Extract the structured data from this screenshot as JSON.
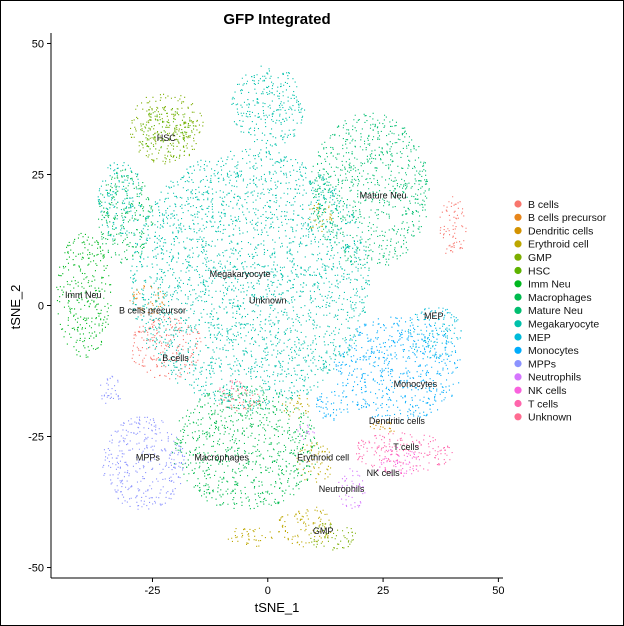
{
  "chart_data": {
    "type": "scatter",
    "title": "GFP Integrated",
    "xlabel": "tSNE_1",
    "ylabel": "tSNE_2",
    "xlim": [
      -47,
      51
    ],
    "ylim": [
      -52,
      52
    ],
    "xticks": [
      -25,
      0,
      25,
      50
    ],
    "yticks": [
      -50,
      -25,
      0,
      25,
      50
    ],
    "legend_position": "right",
    "series": [
      {
        "name": "B cells",
        "color": "#F8766D",
        "regions": [
          {
            "cx": -22,
            "cy": -8,
            "rx": 8,
            "ry": 6
          },
          {
            "cx": 40,
            "cy": 15,
            "rx": 3,
            "ry": 6
          },
          {
            "cx": -6,
            "cy": -18,
            "rx": 5,
            "ry": 2
          }
        ]
      },
      {
        "name": "B cells precursor",
        "color": "#E7861B",
        "regions": [
          {
            "cx": -26,
            "cy": 1,
            "rx": 4,
            "ry": 3
          }
        ]
      },
      {
        "name": "Dendritic cells",
        "color": "#D39200",
        "regions": [
          {
            "cx": 25,
            "cy": -23,
            "rx": 3,
            "ry": 1.5
          }
        ]
      },
      {
        "name": "Erythroid cell",
        "color": "#BDA700",
        "regions": [
          {
            "cx": 11,
            "cy": 17,
            "rx": 3,
            "ry": 3
          },
          {
            "cx": 6,
            "cy": -19,
            "rx": 3,
            "ry": 2.5
          },
          {
            "cx": 10,
            "cy": -30,
            "rx": 4,
            "ry": 4
          },
          {
            "cx": 8,
            "cy": -42,
            "rx": 6,
            "ry": 4
          },
          {
            "cx": -4,
            "cy": -44,
            "rx": 5,
            "ry": 2
          }
        ]
      },
      {
        "name": "GMP",
        "color": "#7CAE00",
        "regions": [
          {
            "cx": 14,
            "cy": -44,
            "rx": 5,
            "ry": 3
          },
          {
            "cx": -22,
            "cy": 34,
            "rx": 8,
            "ry": 7
          }
        ]
      },
      {
        "name": "HSC",
        "color": "#5EB300",
        "regions": [
          {
            "cx": -22,
            "cy": 33,
            "rx": 6,
            "ry": 5
          }
        ]
      },
      {
        "name": "Imm Neu",
        "color": "#00B81F",
        "regions": [
          {
            "cx": -40,
            "cy": 2,
            "rx": 6,
            "ry": 12
          }
        ]
      },
      {
        "name": "Macrophages",
        "color": "#00BB4E",
        "regions": [
          {
            "cx": -5,
            "cy": -27,
            "rx": 16,
            "ry": 12
          },
          {
            "cx": -31,
            "cy": 17,
            "rx": 6,
            "ry": 9
          }
        ]
      },
      {
        "name": "Mature Neu",
        "color": "#00BE70",
        "regions": [
          {
            "cx": 22,
            "cy": 22,
            "rx": 13,
            "ry": 15
          }
        ]
      },
      {
        "name": "Megakaryocyte",
        "color": "#00C1AB",
        "regions": [
          {
            "cx": -4,
            "cy": 5,
            "rx": 26,
            "ry": 25
          },
          {
            "cx": 0,
            "cy": 38,
            "rx": 8,
            "ry": 8
          },
          {
            "cx": -32,
            "cy": 20,
            "rx": 5,
            "ry": 8
          }
        ]
      },
      {
        "name": "MEP",
        "color": "#00BBDA",
        "regions": [
          {
            "cx": 36,
            "cy": -5,
            "rx": 6,
            "ry": 5
          }
        ]
      },
      {
        "name": "Monocytes",
        "color": "#00ACFC",
        "regions": [
          {
            "cx": 28,
            "cy": -12,
            "rx": 14,
            "ry": 10
          },
          {
            "cx": 14,
            "cy": -19,
            "rx": 4,
            "ry": 3
          }
        ]
      },
      {
        "name": "MPPs",
        "color": "#8B93FF",
        "regions": [
          {
            "cx": -27,
            "cy": -30,
            "rx": 9,
            "ry": 9
          },
          {
            "cx": -34,
            "cy": -16,
            "rx": 2.5,
            "ry": 3
          }
        ]
      },
      {
        "name": "Neutrophils",
        "color": "#D575FE",
        "regions": [
          {
            "cx": 18,
            "cy": -35,
            "rx": 3,
            "ry": 4
          },
          {
            "cx": 8,
            "cy": -24,
            "rx": 2,
            "ry": 1.5
          }
        ]
      },
      {
        "name": "NK cells",
        "color": "#F962DD",
        "regions": [
          {
            "cx": 28,
            "cy": -30,
            "rx": 5,
            "ry": 3
          }
        ]
      },
      {
        "name": "T cells",
        "color": "#FF65AC",
        "regions": [
          {
            "cx": 29,
            "cy": -28,
            "rx": 11,
            "ry": 4
          }
        ]
      },
      {
        "name": "Unknown",
        "color": "#FF6C91",
        "regions": [
          {
            "cx": -8,
            "cy": -16,
            "rx": 3,
            "ry": 2
          }
        ]
      }
    ],
    "annotations": [
      {
        "text": "HSC",
        "x": -22,
        "y": 32
      },
      {
        "text": "Mature Neu",
        "x": 25,
        "y": 21
      },
      {
        "text": "Megakaryocyte",
        "x": -6,
        "y": 6
      },
      {
        "text": "Unknown",
        "x": 0,
        "y": 1
      },
      {
        "text": "Imm Neu",
        "x": -40,
        "y": 2
      },
      {
        "text": "B cells precursor",
        "x": -25,
        "y": -1
      },
      {
        "text": "MEP",
        "x": 36,
        "y": -2
      },
      {
        "text": "B cells",
        "x": -20,
        "y": -10
      },
      {
        "text": "Monocytes",
        "x": 32,
        "y": -15
      },
      {
        "text": "Dendritic cells",
        "x": 28,
        "y": -22
      },
      {
        "text": "T cells",
        "x": 30,
        "y": -27
      },
      {
        "text": "MPPs",
        "x": -26,
        "y": -29
      },
      {
        "text": "Macrophages",
        "x": -10,
        "y": -29
      },
      {
        "text": "Erythroid cell",
        "x": 12,
        "y": -29
      },
      {
        "text": "NK cells",
        "x": 25,
        "y": -32
      },
      {
        "text": "Neutrophils",
        "x": 16,
        "y": -35
      },
      {
        "text": "GMP",
        "x": 12,
        "y": -43
      }
    ]
  }
}
